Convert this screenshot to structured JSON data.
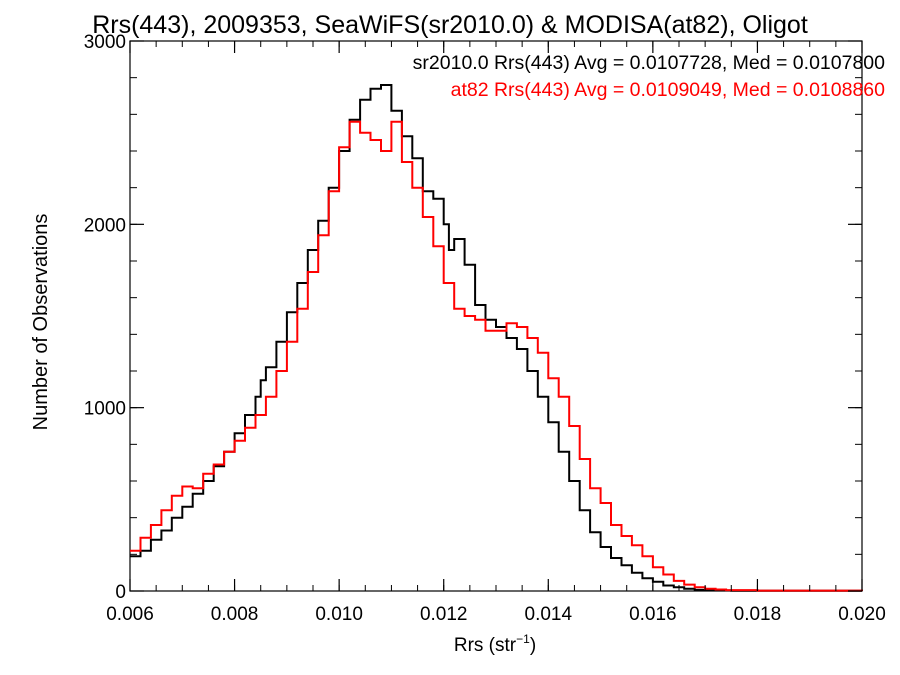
{
  "chart_data": {
    "type": "line",
    "title": "Rrs(443), 2009353, SeaWiFS(sr2010.0) & MODISA(at82), Oligot",
    "xlabel": "Rrs (str",
    "xlabel_sup": "−1",
    "xlabel_suffix": ")",
    "ylabel": "Number of Observations",
    "xlim": [
      0.006,
      0.02
    ],
    "ylim": [
      0,
      3000
    ],
    "x_ticks": [
      0.006,
      0.008,
      0.01,
      0.012,
      0.014,
      0.016,
      0.018,
      0.02
    ],
    "x_tick_labels": [
      "0.006",
      "0.008",
      "0.010",
      "0.012",
      "0.014",
      "0.016",
      "0.018",
      "0.020"
    ],
    "y_ticks": [
      0,
      1000,
      2000,
      3000
    ],
    "y_tick_labels": [
      "0",
      "1000",
      "2000",
      "3000"
    ],
    "grid": false,
    "legend_placement": "top-right",
    "legend": [
      {
        "text": "sr2010.0 Rrs(443) Avg = 0.0107728, Med = 0.0107800",
        "color": "#000000"
      },
      {
        "text": "at82 Rrs(443) Avg = 0.0109049, Med = 0.0108860",
        "color": "#ff0000"
      }
    ],
    "series": [
      {
        "name": "sr2010.0",
        "color": "#000000",
        "step": true,
        "points": [
          [
            0.006,
            190
          ],
          [
            0.0062,
            220
          ],
          [
            0.0064,
            280
          ],
          [
            0.0066,
            330
          ],
          [
            0.0068,
            400
          ],
          [
            0.007,
            460
          ],
          [
            0.0072,
            530
          ],
          [
            0.0074,
            600
          ],
          [
            0.0076,
            680
          ],
          [
            0.0078,
            760
          ],
          [
            0.008,
            860
          ],
          [
            0.0082,
            960
          ],
          [
            0.0084,
            1060
          ],
          [
            0.0085,
            1150
          ],
          [
            0.0086,
            1220
          ],
          [
            0.0088,
            1360
          ],
          [
            0.009,
            1520
          ],
          [
            0.0092,
            1680
          ],
          [
            0.0094,
            1860
          ],
          [
            0.0096,
            2020
          ],
          [
            0.0098,
            2200
          ],
          [
            0.01,
            2400
          ],
          [
            0.0102,
            2570
          ],
          [
            0.0104,
            2680
          ],
          [
            0.0106,
            2740
          ],
          [
            0.0108,
            2760
          ],
          [
            0.011,
            2620
          ],
          [
            0.0112,
            2480
          ],
          [
            0.0114,
            2360
          ],
          [
            0.0116,
            2180
          ],
          [
            0.0118,
            2140
          ],
          [
            0.012,
            2000
          ],
          [
            0.0121,
            1860
          ],
          [
            0.0122,
            1920
          ],
          [
            0.0124,
            1780
          ],
          [
            0.0126,
            1560
          ],
          [
            0.0128,
            1480
          ],
          [
            0.013,
            1440
          ],
          [
            0.0132,
            1380
          ],
          [
            0.0134,
            1320
          ],
          [
            0.0136,
            1200
          ],
          [
            0.0138,
            1060
          ],
          [
            0.014,
            920
          ],
          [
            0.0142,
            760
          ],
          [
            0.0144,
            600
          ],
          [
            0.0146,
            440
          ],
          [
            0.0148,
            320
          ],
          [
            0.015,
            240
          ],
          [
            0.0152,
            180
          ],
          [
            0.0154,
            140
          ],
          [
            0.0156,
            100
          ],
          [
            0.0158,
            70
          ],
          [
            0.016,
            50
          ],
          [
            0.0162,
            30
          ],
          [
            0.0164,
            20
          ],
          [
            0.0166,
            12
          ],
          [
            0.0168,
            6
          ],
          [
            0.017,
            3
          ],
          [
            0.0175,
            1
          ],
          [
            0.02,
            0
          ]
        ]
      },
      {
        "name": "at82",
        "color": "#ff0000",
        "step": true,
        "points": [
          [
            0.006,
            220
          ],
          [
            0.0062,
            290
          ],
          [
            0.0064,
            360
          ],
          [
            0.0066,
            440
          ],
          [
            0.0068,
            520
          ],
          [
            0.007,
            570
          ],
          [
            0.0072,
            560
          ],
          [
            0.0074,
            640
          ],
          [
            0.0076,
            690
          ],
          [
            0.0078,
            760
          ],
          [
            0.008,
            820
          ],
          [
            0.0082,
            890
          ],
          [
            0.0084,
            960
          ],
          [
            0.0086,
            1060
          ],
          [
            0.0088,
            1200
          ],
          [
            0.009,
            1360
          ],
          [
            0.0092,
            1540
          ],
          [
            0.0094,
            1740
          ],
          [
            0.0096,
            1940
          ],
          [
            0.0098,
            2180
          ],
          [
            0.01,
            2420
          ],
          [
            0.0102,
            2560
          ],
          [
            0.0104,
            2500
          ],
          [
            0.0106,
            2460
          ],
          [
            0.0108,
            2400
          ],
          [
            0.011,
            2560
          ],
          [
            0.0112,
            2340
          ],
          [
            0.0114,
            2200
          ],
          [
            0.0116,
            2040
          ],
          [
            0.0118,
            1880
          ],
          [
            0.012,
            1680
          ],
          [
            0.0122,
            1540
          ],
          [
            0.0124,
            1500
          ],
          [
            0.0126,
            1480
          ],
          [
            0.0128,
            1420
          ],
          [
            0.013,
            1420
          ],
          [
            0.0132,
            1460
          ],
          [
            0.0134,
            1440
          ],
          [
            0.0136,
            1380
          ],
          [
            0.0138,
            1300
          ],
          [
            0.014,
            1160
          ],
          [
            0.0142,
            1060
          ],
          [
            0.0144,
            900
          ],
          [
            0.0146,
            720
          ],
          [
            0.0148,
            560
          ],
          [
            0.015,
            480
          ],
          [
            0.0152,
            360
          ],
          [
            0.0154,
            300
          ],
          [
            0.0156,
            250
          ],
          [
            0.0158,
            190
          ],
          [
            0.016,
            130
          ],
          [
            0.0162,
            90
          ],
          [
            0.0164,
            55
          ],
          [
            0.0166,
            35
          ],
          [
            0.0168,
            20
          ],
          [
            0.017,
            12
          ],
          [
            0.0172,
            8
          ],
          [
            0.0174,
            5
          ],
          [
            0.018,
            2
          ],
          [
            0.02,
            0
          ]
        ]
      }
    ]
  }
}
